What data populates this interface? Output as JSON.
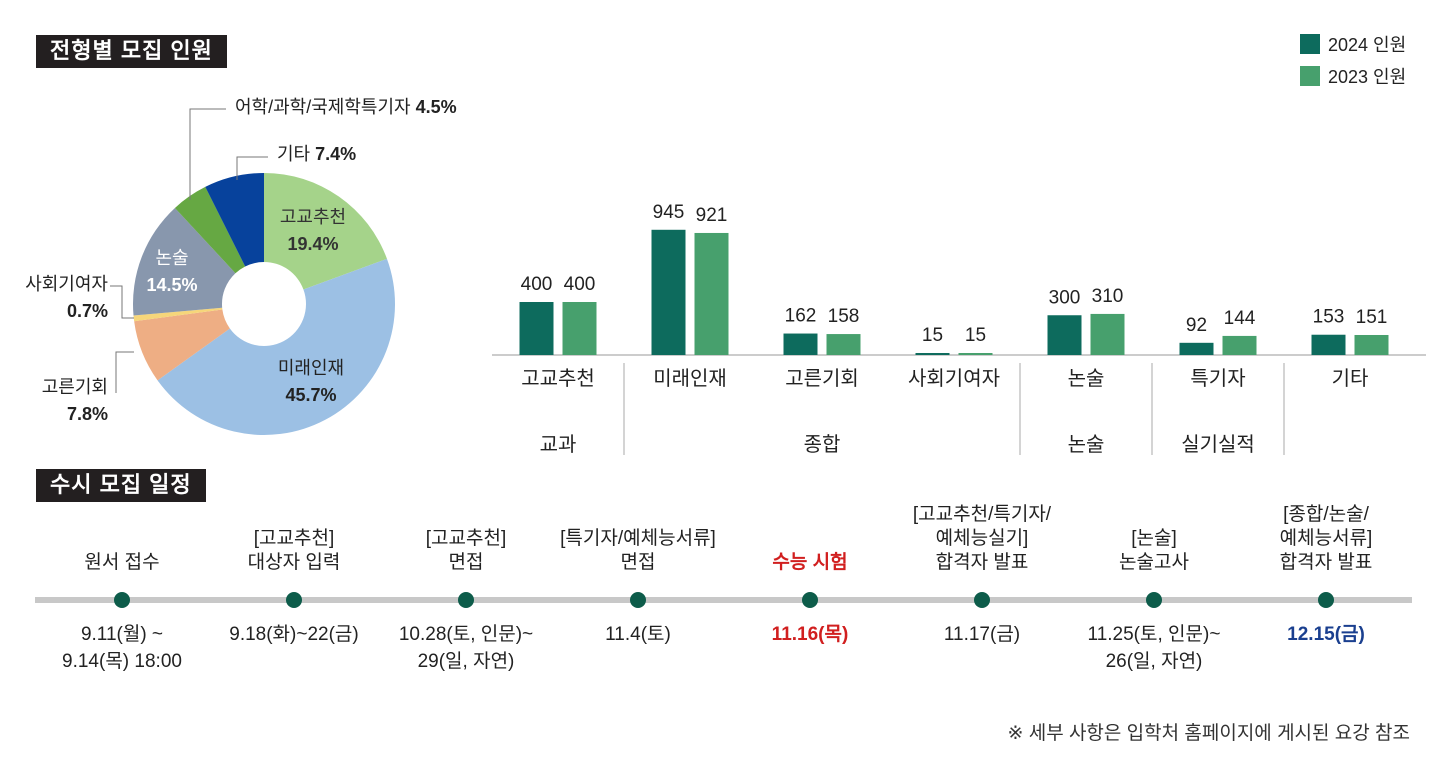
{
  "section_titles": {
    "composition": "전형별 모집 인원",
    "schedule": "수시 모집 일정"
  },
  "colors": {
    "series_2024": "#0d6b5d",
    "series_2023": "#47a06d",
    "timeline_dot": "#0d5c4a",
    "highlight_red": "#d11f1f",
    "highlight_blue": "#1a3f8f"
  },
  "chart_data": [
    {
      "type": "pie",
      "variant": "donut",
      "slices": [
        {
          "label": "고교추천",
          "value": 19.4,
          "value_text": "19.4%",
          "color": "#a5d38a"
        },
        {
          "label": "미래인재",
          "value": 45.7,
          "value_text": "45.7%",
          "color": "#9cc0e4"
        },
        {
          "label": "고른기회",
          "value": 7.8,
          "value_text": "7.8%",
          "color": "#eeae84"
        },
        {
          "label": "사회기여자",
          "value": 0.7,
          "value_text": "0.7%",
          "color": "#f6d67a"
        },
        {
          "label": "논술",
          "value": 14.5,
          "value_text": "14.5%",
          "color": "#8897ad"
        },
        {
          "label": "어학/과학/국제학특기자",
          "value": 4.5,
          "value_text": "4.5%",
          "color": "#66a843"
        },
        {
          "label": "기타",
          "value": 7.4,
          "value_text": "7.4%",
          "color": "#07429c"
        }
      ]
    },
    {
      "type": "bar",
      "categories": [
        "고교추천",
        "미래인재",
        "고른기회",
        "사회기여자",
        "논술",
        "특기자",
        "기타"
      ],
      "series": [
        {
          "name": "2024 인원",
          "values": [
            400,
            945,
            162,
            15,
            300,
            92,
            153
          ]
        },
        {
          "name": "2023 인원",
          "values": [
            400,
            921,
            158,
            15,
            310,
            144,
            151
          ]
        }
      ],
      "groups": [
        {
          "label": "교과",
          "span": [
            0,
            0
          ]
        },
        {
          "label": "종합",
          "span": [
            1,
            3
          ]
        },
        {
          "label": "논술",
          "span": [
            4,
            4
          ]
        },
        {
          "label": "실기실적",
          "span": [
            5,
            5
          ]
        }
      ],
      "ylim": [
        0,
        1000
      ],
      "legend_position": "top-right"
    }
  ],
  "schedule": [
    {
      "title": [
        "원서 접수"
      ],
      "date": [
        "9.11(월) ~",
        "9.14(목) 18:00"
      ],
      "highlight": ""
    },
    {
      "title": [
        "[고교추천]",
        "대상자 입력"
      ],
      "date": [
        "9.18(화)~22(금)"
      ],
      "highlight": ""
    },
    {
      "title": [
        "[고교추천]",
        "면접"
      ],
      "date": [
        "10.28(토, 인문)~",
        "29(일, 자연)"
      ],
      "highlight": ""
    },
    {
      "title": [
        "[특기자/예체능서류]",
        "면접"
      ],
      "date": [
        "11.4(토)"
      ],
      "highlight": ""
    },
    {
      "title": [
        "수능 시험"
      ],
      "date": [
        "11.16(목)"
      ],
      "highlight": "red"
    },
    {
      "title": [
        "[고교추천/특기자/",
        "예체능실기]",
        "합격자 발표"
      ],
      "date": [
        "11.17(금)"
      ],
      "highlight": ""
    },
    {
      "title": [
        "[논술]",
        "논술고사"
      ],
      "date": [
        "11.25(토, 인문)~",
        "26(일, 자연)"
      ],
      "highlight": ""
    },
    {
      "title": [
        "[종합/논술/",
        "예체능서류]",
        "합격자 발표"
      ],
      "date": [
        "12.15(금)"
      ],
      "highlight": "blue"
    }
  ],
  "footnote": "※ 세부 사항은 입학처 홈페이지에 게시된 요강 참조"
}
